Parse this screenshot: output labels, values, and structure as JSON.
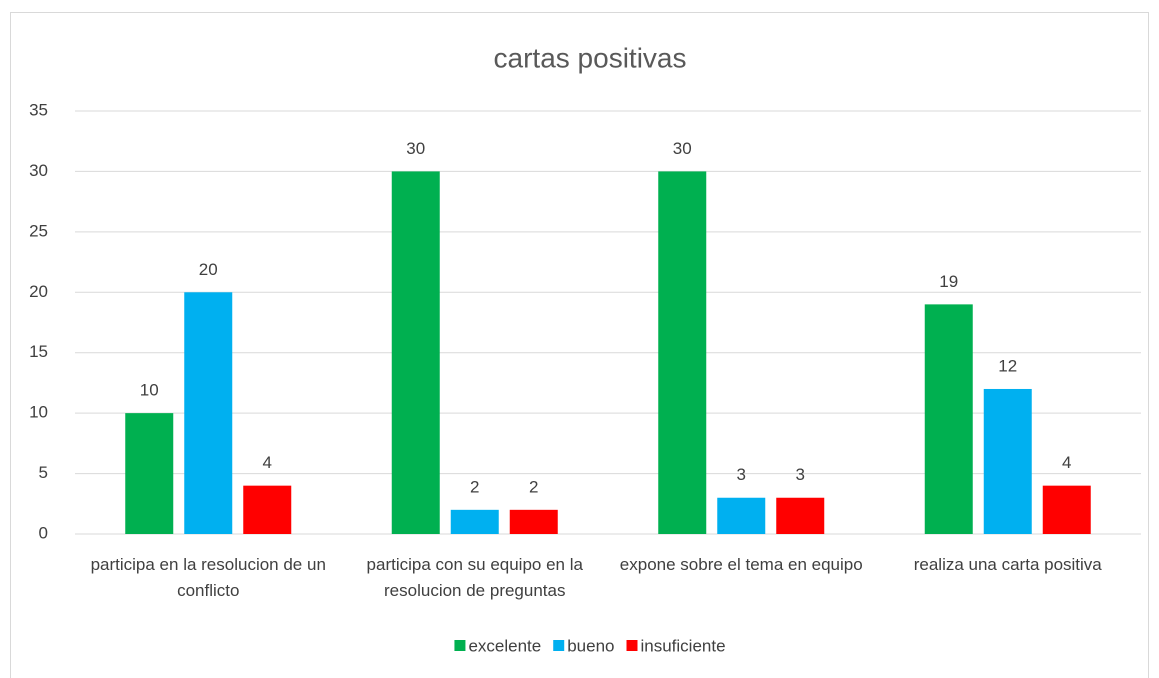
{
  "chart_data": {
    "type": "bar",
    "title": "cartas positivas",
    "categories": [
      "participa en la resolucion de un conflicto",
      "participa con su equipo en la resolucion de preguntas",
      "expone sobre el tema en equipo",
      "realiza una carta positiva"
    ],
    "series": [
      {
        "name": "excelente",
        "color": "#00b050",
        "values": [
          10,
          30,
          30,
          19
        ]
      },
      {
        "name": "bueno",
        "color": "#00b0f0",
        "values": [
          20,
          2,
          3,
          12
        ]
      },
      {
        "name": "insuficiente",
        "color": "#ff0000",
        "values": [
          4,
          2,
          3,
          4
        ]
      }
    ],
    "ylim": [
      0,
      35
    ],
    "yticks": [
      0,
      5,
      10,
      15,
      20,
      25,
      30,
      35
    ],
    "grid": true,
    "legend": "bottom"
  }
}
